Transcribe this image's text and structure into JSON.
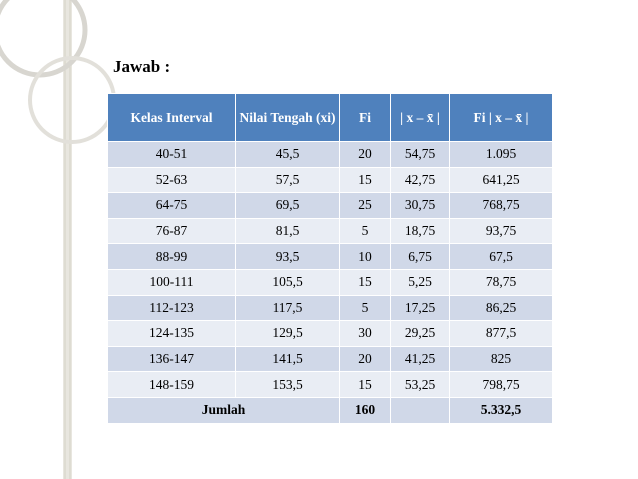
{
  "heading": "Jawab :",
  "table": {
    "header": [
      "Kelas Interval",
      "Nilai Tengah (xi)",
      "Fi",
      "| x – x̄ |",
      "Fi | x – x̄ |"
    ],
    "rows": [
      [
        "40-51",
        "45,5",
        "20",
        "54,75",
        "1.095"
      ],
      [
        "52-63",
        "57,5",
        "15",
        "42,75",
        "641,25"
      ],
      [
        "64-75",
        "69,5",
        "25",
        "30,75",
        "768,75"
      ],
      [
        "76-87",
        "81,5",
        "5",
        "18,75",
        "93,75"
      ],
      [
        "88-99",
        "93,5",
        "10",
        "6,75",
        "67,5"
      ],
      [
        "100-111",
        "105,5",
        "15",
        "5,25",
        "78,75"
      ],
      [
        "112-123",
        "117,5",
        "5",
        "17,25",
        "86,25"
      ],
      [
        "124-135",
        "129,5",
        "30",
        "29,25",
        "877,5"
      ],
      [
        "136-147",
        "141,5",
        "20",
        "41,25",
        "825"
      ],
      [
        "148-159",
        "153,5",
        "15",
        "53,25",
        "798,75"
      ]
    ],
    "total": {
      "label": "Jumlah",
      "fi": "160",
      "sum": "5.332,5"
    }
  }
}
